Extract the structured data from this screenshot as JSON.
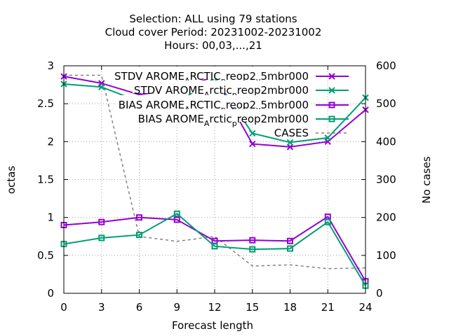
{
  "chart_data": {
    "type": "line",
    "title_lines": [
      "Selection: ALL using    79 stations",
      "Cloud cover   Period: 20231002-20231002",
      "Hours:  00,03,...,21"
    ],
    "xlabel": "Forecast length",
    "ylabel": "octas",
    "y2label": "No cases",
    "x": [
      0,
      3,
      6,
      9,
      12,
      15,
      18,
      21,
      24
    ],
    "xlim": [
      0,
      24
    ],
    "ylim": [
      0,
      3
    ],
    "y2lim": [
      0,
      600
    ],
    "x_ticks": [
      "0",
      "3",
      "6",
      "9",
      "12",
      "15",
      "18",
      "21",
      "24"
    ],
    "y_ticks": [
      "0",
      "0.5",
      "1",
      "1.5",
      "2",
      "2.5",
      "3"
    ],
    "y2_ticks": [
      "0",
      "100",
      "200",
      "300",
      "400",
      "500",
      "600"
    ],
    "grid": true,
    "legend_position": "top-right",
    "series": [
      {
        "name": "STDV AROME_ARCTIC_reop2_v5mbr000",
        "legend_text": [
          "STDV AROME",
          "A",
          "RCTIC",
          "p",
          "reop2",
          "v",
          "5mbr000"
        ],
        "color": "#9400d3",
        "marker": "x",
        "axis": "y1",
        "values": [
          2.86,
          2.77,
          2.62,
          2.69,
          2.86,
          1.97,
          1.93,
          2.0,
          2.42
        ]
      },
      {
        "name": "STDV AROME_Arctic_reop2mbr000",
        "legend_text": [
          "STDV AROME",
          "A",
          "rctic",
          "p",
          "reop2mbr000"
        ],
        "color": "#009e73",
        "marker": "x",
        "axis": "y1",
        "values": [
          2.76,
          2.72,
          2.53,
          2.51,
          2.84,
          2.11,
          1.99,
          2.05,
          2.58
        ]
      },
      {
        "name": "BIAS AROME_ARCTIC_reop2_v5mbr000",
        "legend_text": [
          "BIAS AROME",
          "A",
          "RCTIC",
          "p",
          "reop2",
          "v",
          "5mbr000"
        ],
        "color": "#9400d3",
        "marker": "square",
        "axis": "y1",
        "values": [
          0.9,
          0.94,
          1.0,
          0.97,
          0.69,
          0.7,
          0.69,
          1.01,
          0.16
        ]
      },
      {
        "name": "BIAS AROME_Arctic_reop2mbr000",
        "legend_text": [
          "BIAS AROME",
          "A",
          "rctic",
          "p",
          "reop2mbr000"
        ],
        "color": "#009e73",
        "marker": "square",
        "axis": "y1",
        "values": [
          0.65,
          0.73,
          0.77,
          1.05,
          0.62,
          0.58,
          0.59,
          0.94,
          0.1
        ]
      },
      {
        "name": "CASES",
        "legend_text": [
          "CASES"
        ],
        "color": "#808080",
        "marker": "none",
        "dashed": true,
        "axis": "y2",
        "values": [
          575,
          575,
          150,
          137,
          150,
          72,
          75,
          65,
          67
        ]
      }
    ]
  }
}
